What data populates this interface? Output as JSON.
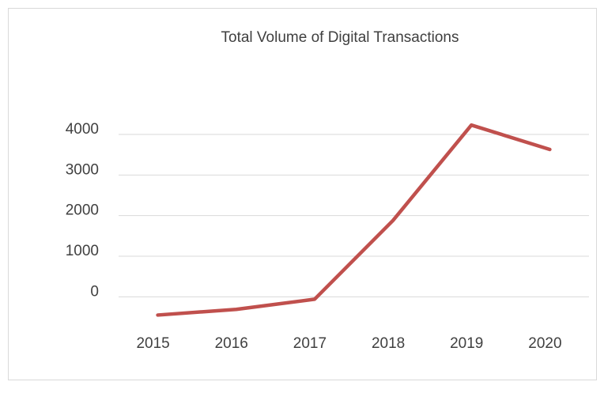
{
  "chart_data": {
    "type": "line",
    "title": "Total Volume of Digital Transactions",
    "categories": [
      "2015",
      "2016",
      "2017",
      "2018",
      "2019",
      "2020"
    ],
    "series": [
      {
        "name": "Total Volume of Digital Transactions",
        "color": "#c0504d",
        "values": [
          -450,
          -310,
          -60,
          1880,
          4230,
          3630
        ]
      }
    ],
    "ylim": [
      -500,
      4000
    ],
    "yticks": [
      0,
      1000,
      2000,
      3000,
      4000
    ],
    "grid": true
  }
}
